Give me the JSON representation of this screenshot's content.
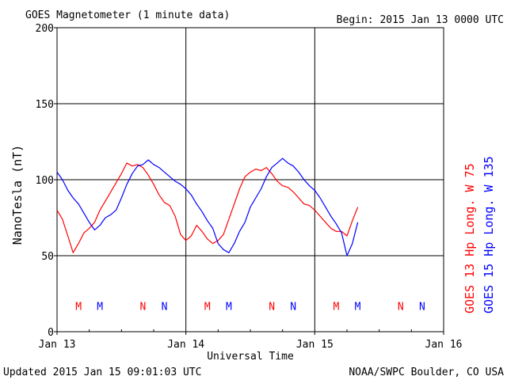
{
  "chart_data": {
    "type": "line",
    "title": "GOES Magnetometer (1 minute data)",
    "begin_label": "Begin:  2015 Jan 13 0000 UTC",
    "ylabel": "NanoTesla (nT)",
    "xlabel": "Universal Time",
    "footer_left": "Updated 2015 Jan 15 09:01:03 UTC",
    "footer_right": "NOAA/SWPC Boulder, CO USA",
    "xlim": [
      0,
      72
    ],
    "ylim": [
      0,
      200
    ],
    "yticks": [
      "0",
      "50",
      "100",
      "150",
      "200"
    ],
    "xticks": [
      {
        "t": 0,
        "label": "Jan 13"
      },
      {
        "t": 24,
        "label": "Jan 14"
      },
      {
        "t": 48,
        "label": "Jan 15"
      },
      {
        "t": 72,
        "label": "Jan 16"
      }
    ],
    "grid": true,
    "series": [
      {
        "name": "GOES 13 Hp  Long. W 75",
        "color": "#ff0000",
        "points": [
          [
            0,
            80
          ],
          [
            1,
            74
          ],
          [
            2,
            63
          ],
          [
            3,
            52
          ],
          [
            4,
            58
          ],
          [
            5,
            65
          ],
          [
            6,
            68
          ],
          [
            7,
            72
          ],
          [
            8,
            80
          ],
          [
            9,
            86
          ],
          [
            10,
            92
          ],
          [
            11,
            98
          ],
          [
            12,
            104
          ],
          [
            13,
            111
          ],
          [
            14,
            109
          ],
          [
            15,
            110
          ],
          [
            16,
            108
          ],
          [
            17,
            103
          ],
          [
            18,
            97
          ],
          [
            19,
            90
          ],
          [
            20,
            85
          ],
          [
            21,
            83
          ],
          [
            22,
            76
          ],
          [
            23,
            64
          ],
          [
            24,
            60
          ],
          [
            25,
            63
          ],
          [
            26,
            70
          ],
          [
            27,
            66
          ],
          [
            28,
            61
          ],
          [
            29,
            58
          ],
          [
            30,
            60
          ],
          [
            31,
            64
          ],
          [
            32,
            74
          ],
          [
            33,
            84
          ],
          [
            34,
            94
          ],
          [
            35,
            102
          ],
          [
            36,
            105
          ],
          [
            37,
            107
          ],
          [
            38,
            106
          ],
          [
            39,
            108
          ],
          [
            40,
            104
          ],
          [
            41,
            99
          ],
          [
            42,
            96
          ],
          [
            43,
            95
          ],
          [
            44,
            92
          ],
          [
            45,
            88
          ],
          [
            46,
            84
          ],
          [
            47,
            83
          ],
          [
            48,
            80
          ],
          [
            49,
            76
          ],
          [
            50,
            72
          ],
          [
            51,
            68
          ],
          [
            52,
            66
          ],
          [
            53,
            66
          ],
          [
            54,
            63
          ],
          [
            55,
            73
          ],
          [
            56,
            82
          ]
        ]
      },
      {
        "name": "GOES 15 Hp  Long. W 135",
        "color": "#0000ff",
        "points": [
          [
            0,
            105
          ],
          [
            1,
            100
          ],
          [
            2,
            93
          ],
          [
            3,
            88
          ],
          [
            4,
            84
          ],
          [
            5,
            78
          ],
          [
            6,
            72
          ],
          [
            7,
            67
          ],
          [
            8,
            70
          ],
          [
            9,
            75
          ],
          [
            10,
            77
          ],
          [
            11,
            80
          ],
          [
            12,
            88
          ],
          [
            13,
            97
          ],
          [
            14,
            104
          ],
          [
            15,
            109
          ],
          [
            16,
            110
          ],
          [
            17,
            113
          ],
          [
            18,
            110
          ],
          [
            19,
            108
          ],
          [
            20,
            105
          ],
          [
            21,
            102
          ],
          [
            22,
            99
          ],
          [
            23,
            97
          ],
          [
            24,
            94
          ],
          [
            25,
            90
          ],
          [
            26,
            84
          ],
          [
            27,
            79
          ],
          [
            28,
            73
          ],
          [
            29,
            68
          ],
          [
            30,
            58
          ],
          [
            31,
            54
          ],
          [
            32,
            52
          ],
          [
            33,
            58
          ],
          [
            34,
            66
          ],
          [
            35,
            72
          ],
          [
            36,
            82
          ],
          [
            37,
            88
          ],
          [
            38,
            94
          ],
          [
            39,
            102
          ],
          [
            40,
            108
          ],
          [
            41,
            111
          ],
          [
            42,
            114
          ],
          [
            43,
            111
          ],
          [
            44,
            109
          ],
          [
            45,
            105
          ],
          [
            46,
            100
          ],
          [
            47,
            96
          ],
          [
            48,
            93
          ],
          [
            49,
            88
          ],
          [
            50,
            82
          ],
          [
            51,
            76
          ],
          [
            52,
            71
          ],
          [
            53,
            65
          ],
          [
            54,
            50
          ],
          [
            55,
            58
          ],
          [
            56,
            72
          ]
        ]
      }
    ],
    "markers": [
      {
        "label": "M",
        "t": 4,
        "color": "#ff0000"
      },
      {
        "label": "M",
        "t": 8,
        "color": "#0000ff"
      },
      {
        "label": "N",
        "t": 16,
        "color": "#ff0000"
      },
      {
        "label": "N",
        "t": 20,
        "color": "#0000ff"
      },
      {
        "label": "M",
        "t": 28,
        "color": "#ff0000"
      },
      {
        "label": "M",
        "t": 32,
        "color": "#0000ff"
      },
      {
        "label": "N",
        "t": 40,
        "color": "#ff0000"
      },
      {
        "label": "N",
        "t": 44,
        "color": "#0000ff"
      },
      {
        "label": "M",
        "t": 52,
        "color": "#ff0000"
      },
      {
        "label": "M",
        "t": 56,
        "color": "#0000ff"
      },
      {
        "label": "N",
        "t": 64,
        "color": "#ff0000"
      },
      {
        "label": "N",
        "t": 68,
        "color": "#0000ff"
      }
    ],
    "markers_value": 17
  }
}
